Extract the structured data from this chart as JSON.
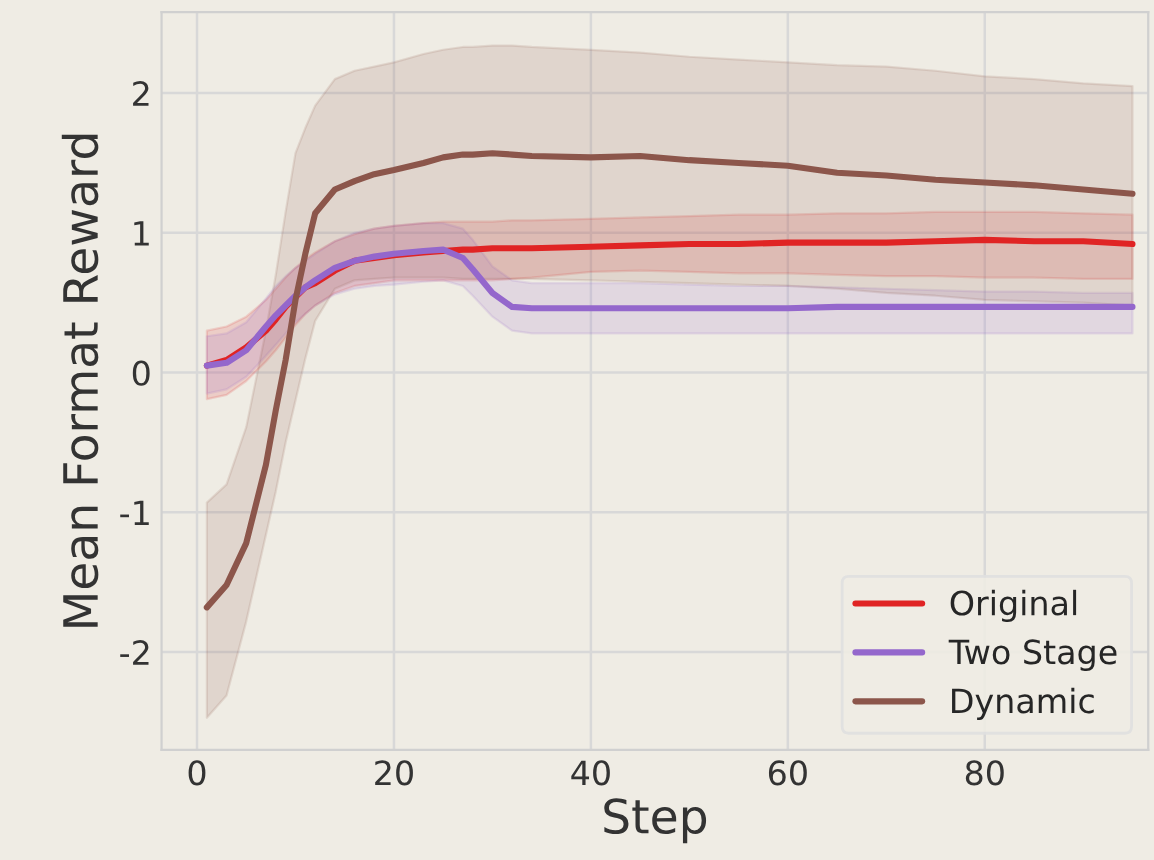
{
  "chart_data": {
    "type": "line",
    "xlabel": "Step",
    "ylabel": "Mean Format Reward",
    "x": [
      1,
      3,
      5,
      7,
      8,
      9,
      10,
      11,
      12,
      14,
      16,
      18,
      20,
      23,
      25,
      27,
      28,
      30,
      32,
      34,
      40,
      45,
      50,
      55,
      60,
      65,
      70,
      75,
      80,
      85,
      90,
      95
    ],
    "series": [
      {
        "name": "Original",
        "color": "#e02424",
        "values": [
          0.05,
          0.09,
          0.18,
          0.3,
          0.38,
          0.47,
          0.54,
          0.61,
          0.64,
          0.73,
          0.8,
          0.82,
          0.84,
          0.86,
          0.87,
          0.88,
          0.88,
          0.89,
          0.89,
          0.89,
          0.9,
          0.91,
          0.92,
          0.92,
          0.93,
          0.93,
          0.93,
          0.94,
          0.95,
          0.94,
          0.94,
          0.92
        ],
        "lower": [
          -0.19,
          -0.16,
          -0.06,
          0.08,
          0.16,
          0.25,
          0.34,
          0.42,
          0.48,
          0.57,
          0.62,
          0.64,
          0.66,
          0.66,
          0.66,
          0.66,
          0.66,
          0.66,
          0.67,
          0.68,
          0.72,
          0.73,
          0.72,
          0.71,
          0.71,
          0.7,
          0.69,
          0.69,
          0.68,
          0.68,
          0.67,
          0.67
        ],
        "upper": [
          0.3,
          0.33,
          0.4,
          0.52,
          0.6,
          0.68,
          0.75,
          0.81,
          0.86,
          0.94,
          0.99,
          1.03,
          1.05,
          1.07,
          1.08,
          1.08,
          1.08,
          1.08,
          1.09,
          1.09,
          1.1,
          1.11,
          1.12,
          1.13,
          1.13,
          1.14,
          1.14,
          1.15,
          1.15,
          1.15,
          1.14,
          1.13
        ]
      },
      {
        "name": "Two Stage",
        "color": "#9467cc",
        "values": [
          0.05,
          0.07,
          0.16,
          0.33,
          0.41,
          0.48,
          0.55,
          0.61,
          0.66,
          0.75,
          0.8,
          0.83,
          0.85,
          0.87,
          0.88,
          0.82,
          0.74,
          0.57,
          0.47,
          0.46,
          0.46,
          0.46,
          0.46,
          0.46,
          0.46,
          0.47,
          0.47,
          0.47,
          0.47,
          0.47,
          0.47,
          0.47
        ],
        "lower": [
          -0.15,
          -0.12,
          -0.03,
          0.12,
          0.2,
          0.28,
          0.36,
          0.42,
          0.48,
          0.56,
          0.6,
          0.62,
          0.63,
          0.65,
          0.66,
          0.62,
          0.55,
          0.4,
          0.3,
          0.28,
          0.28,
          0.28,
          0.28,
          0.28,
          0.28,
          0.28,
          0.28,
          0.28,
          0.28,
          0.28,
          0.28,
          0.28
        ],
        "upper": [
          0.26,
          0.28,
          0.36,
          0.53,
          0.62,
          0.69,
          0.75,
          0.8,
          0.85,
          0.94,
          1.0,
          1.03,
          1.05,
          1.07,
          1.07,
          1.03,
          0.95,
          0.76,
          0.66,
          0.64,
          0.64,
          0.64,
          0.63,
          0.62,
          0.62,
          0.61,
          0.6,
          0.59,
          0.58,
          0.58,
          0.57,
          0.57
        ]
      },
      {
        "name": "Dynamic",
        "color": "#8c564b",
        "values": [
          -1.68,
          -1.52,
          -1.22,
          -0.66,
          -0.27,
          0.09,
          0.52,
          0.85,
          1.14,
          1.31,
          1.37,
          1.42,
          1.45,
          1.5,
          1.54,
          1.56,
          1.56,
          1.57,
          1.56,
          1.55,
          1.54,
          1.55,
          1.52,
          1.5,
          1.48,
          1.43,
          1.41,
          1.38,
          1.36,
          1.34,
          1.31,
          1.28
        ],
        "lower": [
          -2.47,
          -2.31,
          -1.78,
          -1.16,
          -0.85,
          -0.5,
          -0.2,
          0.1,
          0.37,
          0.6,
          0.66,
          0.67,
          0.68,
          0.68,
          0.68,
          0.67,
          0.67,
          0.67,
          0.67,
          0.67,
          0.66,
          0.65,
          0.64,
          0.63,
          0.62,
          0.6,
          0.57,
          0.55,
          0.52,
          0.51,
          0.5,
          0.48
        ],
        "upper": [
          -0.93,
          -0.8,
          -0.39,
          0.3,
          0.7,
          1.15,
          1.57,
          1.75,
          1.91,
          2.1,
          2.16,
          2.19,
          2.22,
          2.28,
          2.31,
          2.33,
          2.33,
          2.34,
          2.34,
          2.33,
          2.31,
          2.29,
          2.26,
          2.24,
          2.22,
          2.2,
          2.19,
          2.16,
          2.12,
          2.1,
          2.07,
          2.05
        ]
      }
    ],
    "xlim": [
      -3.6,
      96.6
    ],
    "ylim": [
      -2.7,
      2.58
    ],
    "xticks": [
      0,
      20,
      40,
      60,
      80
    ],
    "yticks": [
      -2,
      -1,
      0,
      1,
      2
    ],
    "grid": true,
    "legend": "bottom right",
    "line_style": "solid",
    "marker": "none"
  }
}
